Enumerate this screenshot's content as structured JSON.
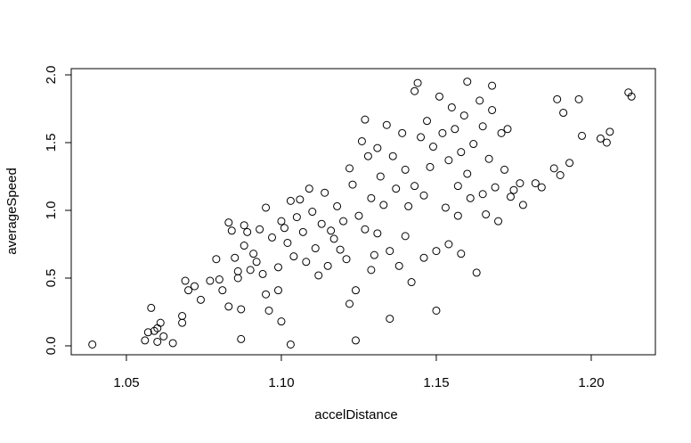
{
  "chart_data": {
    "type": "scatter",
    "xlabel": "accelDistance",
    "ylabel": "averageSpeed",
    "color": "#000000",
    "xlim": [
      1.0322,
      1.2207
    ],
    "ylim": [
      -0.0658,
      2.046
    ],
    "xticks": [
      {
        "value": 1.05,
        "label": "1.05"
      },
      {
        "value": 1.1,
        "label": "1.10"
      },
      {
        "value": 1.15,
        "label": "1.15"
      },
      {
        "value": 1.2,
        "label": "1.20"
      }
    ],
    "yticks": [
      {
        "value": 0,
        "label": "0.0"
      },
      {
        "value": 0.5,
        "label": "0.5"
      },
      {
        "value": 1,
        "label": "1.0"
      },
      {
        "value": 1.5,
        "label": "1.5"
      },
      {
        "value": 2,
        "label": "2.0"
      }
    ],
    "x": [
      1.039,
      1.056,
      1.057,
      1.058,
      1.06,
      1.061,
      1.06,
      1.062,
      1.059,
      1.065,
      1.068,
      1.068,
      1.069,
      1.07,
      1.072,
      1.074,
      1.077,
      1.079,
      1.08,
      1.081,
      1.083,
      1.084,
      1.083,
      1.085,
      1.086,
      1.086,
      1.087,
      1.087,
      1.088,
      1.088,
      1.089,
      1.09,
      1.091,
      1.092,
      1.093,
      1.094,
      1.095,
      1.095,
      1.096,
      1.097,
      1.099,
      1.099,
      1.1,
      1.1,
      1.101,
      1.102,
      1.103,
      1.103,
      1.104,
      1.105,
      1.106,
      1.107,
      1.108,
      1.109,
      1.11,
      1.111,
      1.112,
      1.113,
      1.114,
      1.115,
      1.116,
      1.117,
      1.118,
      1.119,
      1.12,
      1.121,
      1.122,
      1.122,
      1.123,
      1.124,
      1.124,
      1.125,
      1.126,
      1.127,
      1.127,
      1.128,
      1.129,
      1.129,
      1.13,
      1.131,
      1.131,
      1.132,
      1.133,
      1.134,
      1.135,
      1.135,
      1.136,
      1.137,
      1.138,
      1.139,
      1.14,
      1.14,
      1.141,
      1.142,
      1.143,
      1.143,
      1.144,
      1.145,
      1.146,
      1.146,
      1.147,
      1.148,
      1.149,
      1.15,
      1.15,
      1.151,
      1.152,
      1.153,
      1.154,
      1.154,
      1.155,
      1.156,
      1.157,
      1.157,
      1.158,
      1.158,
      1.159,
      1.16,
      1.16,
      1.161,
      1.162,
      1.163,
      1.164,
      1.165,
      1.165,
      1.166,
      1.167,
      1.168,
      1.168,
      1.169,
      1.17,
      1.171,
      1.172,
      1.173,
      1.174,
      1.175,
      1.177,
      1.178,
      1.182,
      1.184,
      1.188,
      1.189,
      1.19,
      1.191,
      1.193,
      1.196,
      1.197,
      1.203,
      1.205,
      1.206,
      1.212,
      1.213
    ],
    "values": [
      0.01,
      0.04,
      0.1,
      0.28,
      0.13,
      0.17,
      0.03,
      0.07,
      0.11,
      0.02,
      0.22,
      0.17,
      0.48,
      0.41,
      0.44,
      0.34,
      0.48,
      0.64,
      0.49,
      0.41,
      0.29,
      0.85,
      0.91,
      0.65,
      0.55,
      0.5,
      0.27,
      0.05,
      0.74,
      0.89,
      0.84,
      0.56,
      0.68,
      0.62,
      0.86,
      0.53,
      1.02,
      0.38,
      0.26,
      0.8,
      0.58,
      0.41,
      0.92,
      0.18,
      0.87,
      0.76,
      1.07,
      0.01,
      0.66,
      0.95,
      1.08,
      0.84,
      0.62,
      1.16,
      0.99,
      0.72,
      0.52,
      0.9,
      1.13,
      0.59,
      0.85,
      0.79,
      1.03,
      0.71,
      0.92,
      0.64,
      1.31,
      0.31,
      1.19,
      0.41,
      0.04,
      0.96,
      1.51,
      1.67,
      0.86,
      1.4,
      1.09,
      0.56,
      0.67,
      1.46,
      0.83,
      1.25,
      1.04,
      1.63,
      0.7,
      0.2,
      1.4,
      1.16,
      0.59,
      1.57,
      1.3,
      0.81,
      1.03,
      0.47,
      1.88,
      1.18,
      1.94,
      1.54,
      0.65,
      1.11,
      1.66,
      1.32,
      1.47,
      0.26,
      0.7,
      1.84,
      1.57,
      1.02,
      1.37,
      0.75,
      1.76,
      1.6,
      1.18,
      0.96,
      1.43,
      0.68,
      1.7,
      1.95,
      1.27,
      1.09,
      1.49,
      0.54,
      1.81,
      1.62,
      1.12,
      0.97,
      1.38,
      1.92,
      1.74,
      1.17,
      0.92,
      1.57,
      1.3,
      1.6,
      1.1,
      1.15,
      1.2,
      1.04,
      1.2,
      1.17,
      1.31,
      1.82,
      1.26,
      1.72,
      1.35,
      1.82,
      1.55,
      1.53,
      1.5,
      1.58,
      1.87,
      1.84
    ]
  }
}
